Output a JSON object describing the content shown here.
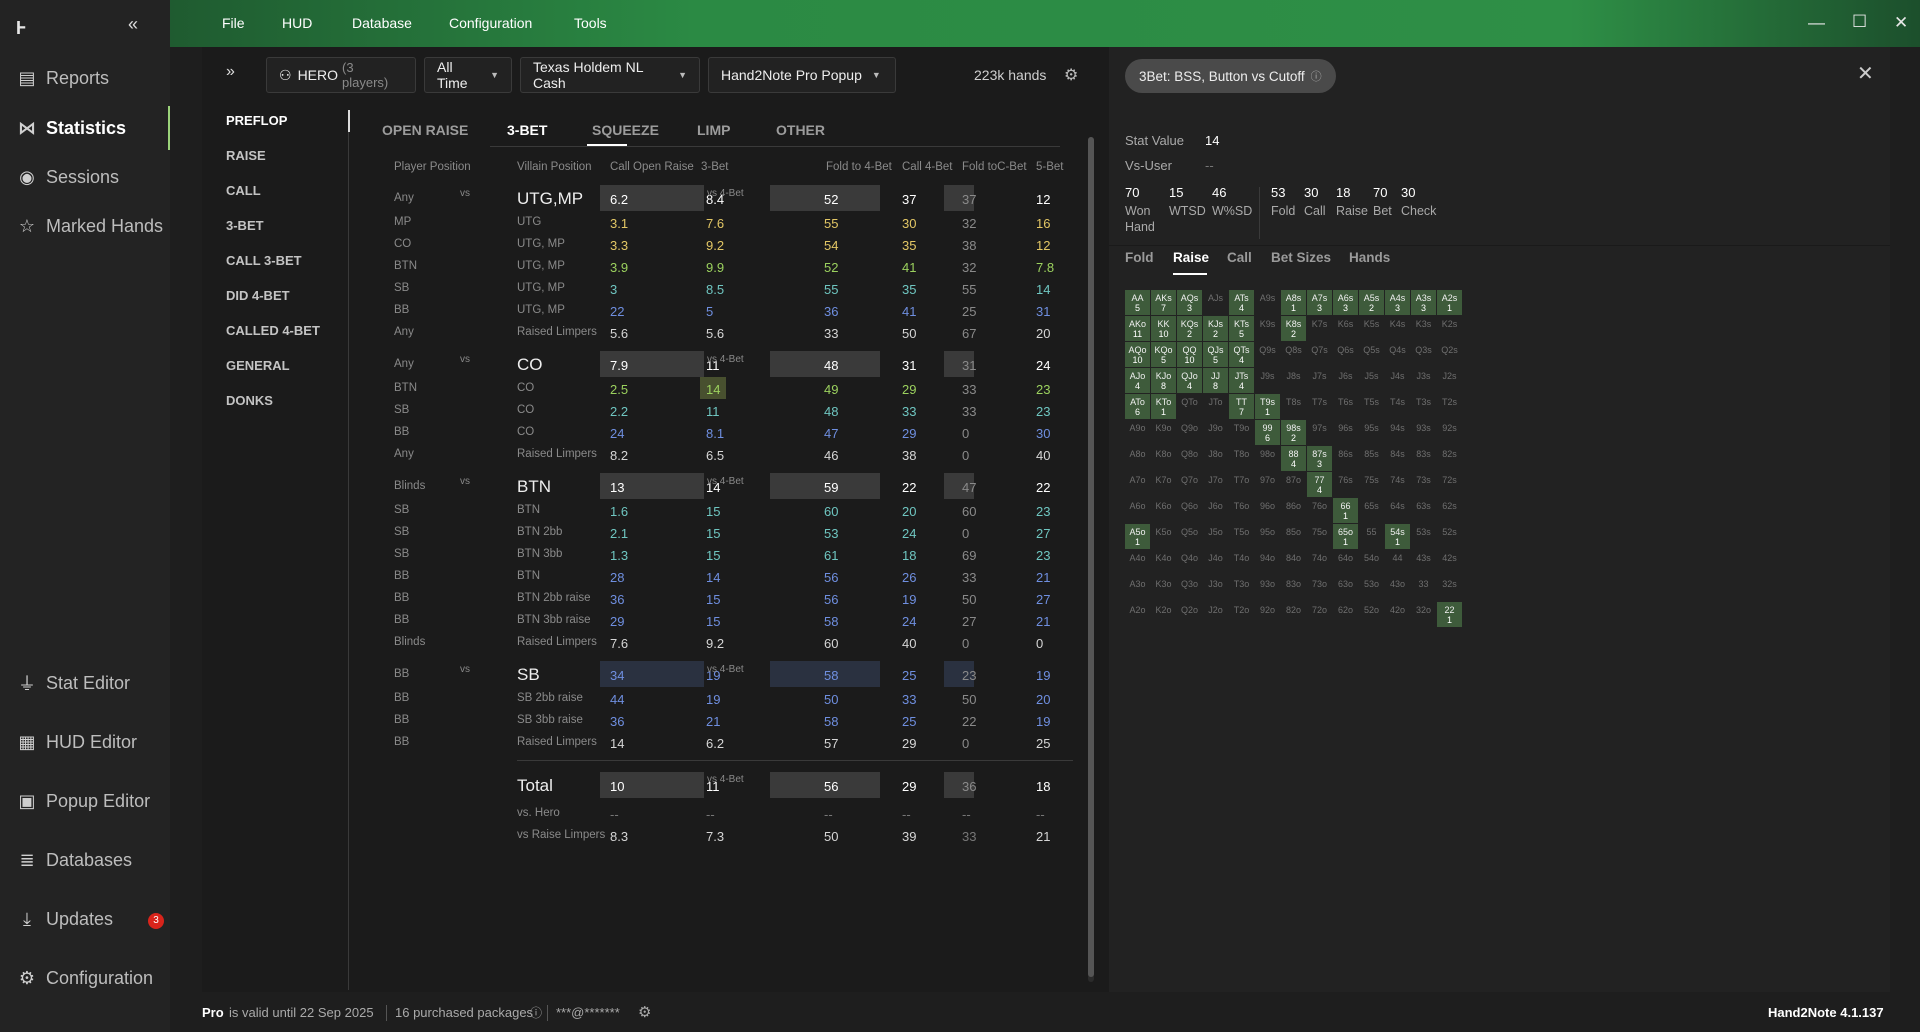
{
  "app": {
    "logo": "Ⱶ"
  },
  "sidebar": {
    "top": [
      {
        "label": "Reports",
        "icon": "report-icon"
      },
      {
        "label": "Statistics",
        "icon": "share-icon"
      },
      {
        "label": "Sessions",
        "icon": "broadcast-icon"
      },
      {
        "label": "Marked Hands",
        "icon": "star-list-icon"
      }
    ],
    "bottom": [
      {
        "label": "Stat Editor",
        "icon": "filter-icon"
      },
      {
        "label": "HUD Editor",
        "icon": "layout-icon"
      },
      {
        "label": "Popup Editor",
        "icon": "popup-icon"
      },
      {
        "label": "Databases",
        "icon": "database-icon"
      },
      {
        "label": "Updates",
        "icon": "download-icon"
      },
      {
        "label": "Configuration",
        "icon": "gear-icon"
      }
    ],
    "updates_badge": "3"
  },
  "menu": [
    "File",
    "HUD",
    "Database",
    "Configuration",
    "Tools"
  ],
  "filters": {
    "player": "HERO",
    "player_count": "(3 players)",
    "time": "All Time",
    "game": "Texas Holdem NL Cash",
    "popup": "Hand2Note Pro Popup",
    "hands": "223k hands"
  },
  "leftnav": [
    "PREFLOP",
    "RAISE",
    "CALL",
    "3-BET",
    "CALL 3-BET",
    "DID 4-BET",
    "CALLED 4-BET",
    "GENERAL",
    "DONKS"
  ],
  "subtabs": [
    "OPEN RAISE",
    "3-BET",
    "SQUEEZE",
    "LIMP",
    "OTHER"
  ],
  "table": {
    "headers": [
      "Player Position",
      "Villain Position",
      "Call Open Raise",
      "3-Bet",
      "Fold to 4-Bet",
      "Call 4-Bet",
      "Fold toC-Bet",
      "5-Bet"
    ],
    "vs_label": "vs",
    "vs4_label": "vs 4-Bet",
    "groups": [
      {
        "pos": "Any",
        "villain": "UTG,MP",
        "cor": "6.2",
        "tb": "8.4",
        "f4": "52",
        "c4": "37",
        "fc": "37",
        "fb": "12",
        "rows": [
          {
            "pos": "MP",
            "villain": "UTG",
            "cor": "3.1",
            "tb": "7.6",
            "f4": "55",
            "c4": "30",
            "fc": "32",
            "fb": "16",
            "col": "y"
          },
          {
            "pos": "CO",
            "villain": "UTG, MP",
            "cor": "3.3",
            "tb": "9.2",
            "f4": "54",
            "c4": "35",
            "fc": "38",
            "fb": "12",
            "col": "y"
          },
          {
            "pos": "BTN",
            "villain": "UTG, MP",
            "cor": "3.9",
            "tb": "9.9",
            "f4": "52",
            "c4": "41",
            "fc": "32",
            "fb": "7.8",
            "col": "g"
          },
          {
            "pos": "SB",
            "villain": "UTG, MP",
            "cor": "3",
            "tb": "8.5",
            "f4": "55",
            "c4": "35",
            "fc": "55",
            "fb": "14",
            "col": "t"
          },
          {
            "pos": "BB",
            "villain": "UTG, MP",
            "cor": "22",
            "tb": "5",
            "f4": "36",
            "c4": "41",
            "fc": "25",
            "fb": "31",
            "col": "b"
          },
          {
            "pos": "Any",
            "villain": "Raised Limpers",
            "cor": "5.6",
            "tb": "5.6",
            "f4": "33",
            "c4": "50",
            "fc": "67",
            "fb": "20",
            "col": "w"
          }
        ]
      },
      {
        "pos": "Any",
        "villain": "CO",
        "cor": "7.9",
        "tb": "11",
        "f4": "48",
        "c4": "31",
        "fc": "31",
        "fb": "24",
        "rows": [
          {
            "pos": "BTN",
            "villain": "CO",
            "cor": "2.5",
            "tb": "14",
            "f4": "49",
            "c4": "29",
            "fc": "33",
            "fb": "23",
            "col": "g"
          },
          {
            "pos": "SB",
            "villain": "CO",
            "cor": "2.2",
            "tb": "11",
            "f4": "48",
            "c4": "33",
            "fc": "33",
            "fb": "23",
            "col": "t"
          },
          {
            "pos": "BB",
            "villain": "CO",
            "cor": "24",
            "tb": "8.1",
            "f4": "47",
            "c4": "29",
            "fc": "0",
            "fb": "30",
            "col": "b"
          },
          {
            "pos": "Any",
            "villain": "Raised Limpers",
            "cor": "8.2",
            "tb": "6.5",
            "f4": "46",
            "c4": "38",
            "fc": "0",
            "fb": "40",
            "col": "w"
          }
        ]
      },
      {
        "pos": "Blinds",
        "villain": "BTN",
        "cor": "13",
        "tb": "14",
        "f4": "59",
        "c4": "22",
        "fc": "47",
        "fb": "22",
        "rows": [
          {
            "pos": "SB",
            "villain": "BTN",
            "cor": "1.6",
            "tb": "15",
            "f4": "60",
            "c4": "20",
            "fc": "60",
            "fb": "23",
            "col": "t"
          },
          {
            "pos": "SB",
            "villain": "BTN 2bb",
            "cor": "2.1",
            "tb": "15",
            "f4": "53",
            "c4": "24",
            "fc": "0",
            "fb": "27",
            "col": "t"
          },
          {
            "pos": "SB",
            "villain": "BTN 3bb",
            "cor": "1.3",
            "tb": "15",
            "f4": "61",
            "c4": "18",
            "fc": "69",
            "fb": "23",
            "col": "t"
          },
          {
            "pos": "BB",
            "villain": "BTN",
            "cor": "28",
            "tb": "14",
            "f4": "56",
            "c4": "26",
            "fc": "33",
            "fb": "21",
            "col": "b"
          },
          {
            "pos": "BB",
            "villain": "BTN 2bb raise",
            "cor": "36",
            "tb": "15",
            "f4": "56",
            "c4": "19",
            "fc": "50",
            "fb": "27",
            "col": "b"
          },
          {
            "pos": "BB",
            "villain": "BTN 3bb raise",
            "cor": "29",
            "tb": "15",
            "f4": "58",
            "c4": "24",
            "fc": "27",
            "fb": "21",
            "col": "b"
          },
          {
            "pos": "Blinds",
            "villain": "Raised Limpers",
            "cor": "7.6",
            "tb": "9.2",
            "f4": "60",
            "c4": "40",
            "fc": "0",
            "fb": "0",
            "col": "w"
          }
        ]
      },
      {
        "pos": "BB",
        "villain": "SB",
        "cor": "34",
        "tb": "19",
        "f4": "58",
        "c4": "25",
        "fc": "23",
        "fb": "19",
        "blue": true,
        "rows": [
          {
            "pos": "BB",
            "villain": "SB 2bb raise",
            "cor": "44",
            "tb": "19",
            "f4": "50",
            "c4": "33",
            "fc": "50",
            "fb": "20",
            "col": "b"
          },
          {
            "pos": "BB",
            "villain": "SB 3bb raise",
            "cor": "36",
            "tb": "21",
            "f4": "58",
            "c4": "25",
            "fc": "22",
            "fb": "19",
            "col": "b"
          },
          {
            "pos": "BB",
            "villain": "Raised Limpers",
            "cor": "14",
            "tb": "6.2",
            "f4": "57",
            "c4": "29",
            "fc": "0",
            "fb": "25",
            "col": "w"
          }
        ]
      }
    ],
    "total": {
      "label": "Total",
      "cor": "10",
      "tb": "11",
      "f4": "56",
      "c4": "29",
      "fc": "36",
      "fb": "18"
    },
    "total_rows": [
      {
        "label": "vs. Hero",
        "cor": "--",
        "tb": "--",
        "f4": "--",
        "c4": "--",
        "fc": "--",
        "fb": "--"
      },
      {
        "label": "vs Raise Limpers",
        "cor": "8.3",
        "tb": "7.3",
        "f4": "50",
        "c4": "39",
        "fc": "33",
        "fb": "21"
      }
    ]
  },
  "popup": {
    "title": "3Bet: BSS, Button vs Cutoff",
    "stat_value_label": "Stat Value",
    "stat_value": "14",
    "vs_user_label": "Vs-User",
    "vs_user": "--",
    "stats": [
      {
        "v": "70",
        "l": "Won Hand"
      },
      {
        "v": "15",
        "l": "WTSD"
      },
      {
        "v": "46",
        "l": "W%SD"
      },
      {
        "v": "53",
        "l": "Fold"
      },
      {
        "v": "30",
        "l": "Call"
      },
      {
        "v": "18",
        "l": "Raise"
      },
      {
        "v": "70",
        "l": "Bet"
      },
      {
        "v": "30",
        "l": "Check"
      }
    ],
    "tabs": [
      "Fold",
      "Raise",
      "Call",
      "Bet Sizes",
      "Hands"
    ],
    "matrix": [
      [
        "AA",
        "5",
        "AKs",
        "7",
        "AQs",
        "3",
        "AJs",
        "",
        "ATs",
        "4",
        "A9s",
        "",
        "A8s",
        "1",
        "A7s",
        "3",
        "A6s",
        "3",
        "A5s",
        "2",
        "A4s",
        "3",
        "A3s",
        "3",
        "A2s",
        "1"
      ],
      [
        "AKo",
        "11",
        "KK",
        "10",
        "KQs",
        "2",
        "KJs",
        "2",
        "KTs",
        "5",
        "K9s",
        "",
        "K8s",
        "2",
        "K7s",
        "",
        "K6s",
        "",
        "K5s",
        "",
        "K4s",
        "",
        "K3s",
        "",
        "K2s",
        ""
      ],
      [
        "AQo",
        "10",
        "KQo",
        "5",
        "QQ",
        "10",
        "QJs",
        "5",
        "QTs",
        "4",
        "Q9s",
        "",
        "Q8s",
        "",
        "Q7s",
        "",
        "Q6s",
        "",
        "Q5s",
        "",
        "Q4s",
        "",
        "Q3s",
        "",
        "Q2s",
        ""
      ],
      [
        "AJo",
        "4",
        "KJo",
        "8",
        "QJo",
        "4",
        "JJ",
        "8",
        "JTs",
        "4",
        "J9s",
        "",
        "J8s",
        "",
        "J7s",
        "",
        "J6s",
        "",
        "J5s",
        "",
        "J4s",
        "",
        "J3s",
        "",
        "J2s",
        ""
      ],
      [
        "ATo",
        "6",
        "KTo",
        "1",
        "QTo",
        "",
        "JTo",
        "",
        "TT",
        "7",
        "T9s",
        "1",
        "T8s",
        "",
        "T7s",
        "",
        "T6s",
        "",
        "T5s",
        "",
        "T4s",
        "",
        "T3s",
        "",
        "T2s",
        ""
      ],
      [
        "A9o",
        "",
        "K9o",
        "",
        "Q9o",
        "",
        "J9o",
        "",
        "T9o",
        "",
        "99",
        "6",
        "98s",
        "2",
        "97s",
        "",
        "96s",
        "",
        "95s",
        "",
        "94s",
        "",
        "93s",
        "",
        "92s",
        ""
      ],
      [
        "A8o",
        "",
        "K8o",
        "",
        "Q8o",
        "",
        "J8o",
        "",
        "T8o",
        "",
        "98o",
        "",
        "88",
        "4",
        "87s",
        "3",
        "86s",
        "",
        "85s",
        "",
        "84s",
        "",
        "83s",
        "",
        "82s",
        ""
      ],
      [
        "A7o",
        "",
        "K7o",
        "",
        "Q7o",
        "",
        "J7o",
        "",
        "T7o",
        "",
        "97o",
        "",
        "87o",
        "",
        "77",
        "4",
        "76s",
        "",
        "75s",
        "",
        "74s",
        "",
        "73s",
        "",
        "72s",
        ""
      ],
      [
        "A6o",
        "",
        "K6o",
        "",
        "Q6o",
        "",
        "J6o",
        "",
        "T6o",
        "",
        "96o",
        "",
        "86o",
        "",
        "76o",
        "",
        "66",
        "1",
        "65s",
        "",
        "64s",
        "",
        "63s",
        "",
        "62s",
        ""
      ],
      [
        "A5o",
        "1",
        "K5o",
        "",
        "Q5o",
        "",
        "J5o",
        "",
        "T5o",
        "",
        "95o",
        "",
        "85o",
        "",
        "75o",
        "",
        "65o",
        "1",
        "55",
        "",
        "54s",
        "1",
        "53s",
        "",
        "52s",
        ""
      ],
      [
        "A4o",
        "",
        "K4o",
        "",
        "Q4o",
        "",
        "J4o",
        "",
        "T4o",
        "",
        "94o",
        "",
        "84o",
        "",
        "74o",
        "",
        "64o",
        "",
        "54o",
        "",
        "44",
        "",
        "43s",
        "",
        "42s",
        ""
      ],
      [
        "A3o",
        "",
        "K3o",
        "",
        "Q3o",
        "",
        "J3o",
        "",
        "T3o",
        "",
        "93o",
        "",
        "83o",
        "",
        "73o",
        "",
        "63o",
        "",
        "53o",
        "",
        "43o",
        "",
        "33",
        "",
        "32s",
        ""
      ],
      [
        "A2o",
        "",
        "K2o",
        "",
        "Q2o",
        "",
        "J2o",
        "",
        "T2o",
        "",
        "92o",
        "",
        "82o",
        "",
        "72o",
        "",
        "62o",
        "",
        "52o",
        "",
        "42o",
        "",
        "32o",
        "",
        "22",
        "1"
      ]
    ]
  },
  "status": {
    "plan": "Pro",
    "valid": "is valid until 22 Sep 2025",
    "packages": "16 purchased packages",
    "email": "***@*******",
    "version": "Hand2Note 4.1.137"
  },
  "colors": {
    "y": "#e3c765",
    "g": "#9bd15e",
    "t": "#6fc6c1",
    "b": "#6f8fe0",
    "w": "#d6d6d6",
    "accent": "#2e8f46"
  }
}
